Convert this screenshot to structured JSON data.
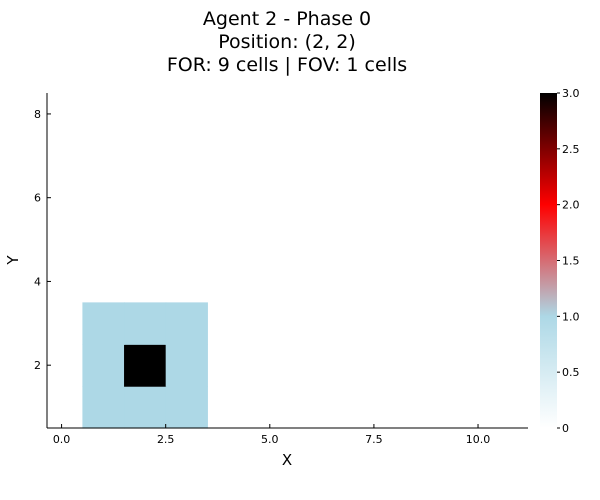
{
  "chart_data": {
    "type": "heatmap",
    "title_lines": [
      "Agent 2 - Phase 0",
      "Position: (2, 2)",
      "FOR: 9 cells | FOV: 1 cells"
    ],
    "xlabel": "X",
    "ylabel": "Y",
    "xlim": [
      -0.35,
      11.2
    ],
    "ylim": [
      0.5,
      8.5
    ],
    "x_ticks": [
      0.0,
      2.5,
      5.0,
      7.5,
      10.0
    ],
    "x_tick_labels": [
      "0.0",
      "2.5",
      "5.0",
      "7.5",
      "10.0"
    ],
    "y_ticks": [
      2,
      4,
      6,
      8
    ],
    "y_tick_labels": [
      "2",
      "4",
      "6",
      "8"
    ],
    "grid": false,
    "cells": [
      {
        "x": 1,
        "y": 1,
        "value": 1
      },
      {
        "x": 2,
        "y": 1,
        "value": 1
      },
      {
        "x": 3,
        "y": 1,
        "value": 1
      },
      {
        "x": 1,
        "y": 2,
        "value": 1
      },
      {
        "x": 2,
        "y": 2,
        "value": 3
      },
      {
        "x": 3,
        "y": 2,
        "value": 1
      },
      {
        "x": 1,
        "y": 3,
        "value": 1
      },
      {
        "x": 2,
        "y": 3,
        "value": 1
      },
      {
        "x": 3,
        "y": 3,
        "value": 1
      }
    ],
    "colorbar": {
      "range": [
        0,
        3
      ],
      "ticks": [
        0,
        0.5,
        1.0,
        1.5,
        2.0,
        2.5,
        3.0
      ],
      "tick_labels": [
        "0",
        "0.5",
        "1.0",
        "1.5",
        "2.0",
        "2.5",
        "3.0"
      ],
      "stops": [
        {
          "value": 0,
          "color": "#ffffff"
        },
        {
          "value": 1,
          "color": "#add8e6"
        },
        {
          "value": 2,
          "color": "#ff0000"
        },
        {
          "value": 3,
          "color": "#000000"
        }
      ]
    }
  }
}
